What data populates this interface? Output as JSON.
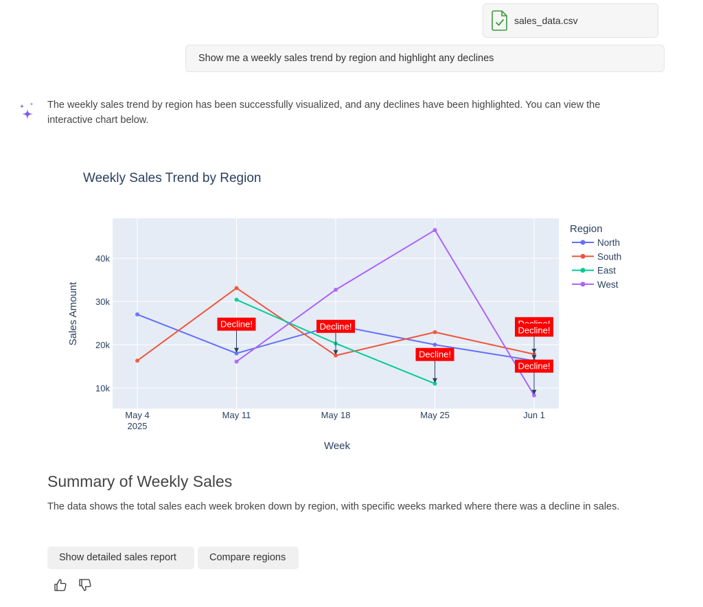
{
  "attachment": {
    "file_name": "sales_data.csv",
    "icon": "csv-file-check-icon",
    "icon_color": "#3a9a3a"
  },
  "user_message": {
    "text": "Show me a weekly sales trend by region and highlight any declines"
  },
  "assistant": {
    "icon": "sparkle-icon",
    "icon_color": "#7b5cf0",
    "message": "The weekly sales trend by region has been successfully visualized, and any declines have been highlighted. You can view the interactive chart below."
  },
  "chart_data": {
    "type": "line",
    "title": "Weekly Sales Trend by Region",
    "xlabel": "Week",
    "ylabel": "Sales Amount",
    "x": [
      "2025-05-04",
      "2025-05-11",
      "2025-05-18",
      "2025-05-25",
      "2025-06-01"
    ],
    "x_tick_labels": [
      "May 4",
      "May 11",
      "May 18",
      "May 25",
      "Jun 1"
    ],
    "x_tick_sublabel": "2025",
    "y_ticks": [
      10000,
      20000,
      30000,
      40000
    ],
    "y_tick_labels": [
      "10k",
      "20k",
      "30k",
      "40k"
    ],
    "ylim": [
      5000,
      49000
    ],
    "grid": true,
    "plot_bgcolor": "#e5ecf6",
    "legend": {
      "title": "Region",
      "placement": "right"
    },
    "series": [
      {
        "name": "North",
        "color": "#636efa",
        "values": [
          27000,
          18000,
          24500,
          20000,
          16300
        ]
      },
      {
        "name": "South",
        "color": "#ef553b",
        "values": [
          16300,
          33100,
          17500,
          22900,
          17800
        ]
      },
      {
        "name": "East",
        "color": "#00cc96",
        "values": [
          null,
          30400,
          20300,
          11000,
          null
        ]
      },
      {
        "name": "West",
        "color": "#ab63fa",
        "values": [
          null,
          16100,
          32700,
          46500,
          8300
        ]
      }
    ],
    "annotations": [
      {
        "text": "Decline!",
        "x": "2025-05-11",
        "y": 18000
      },
      {
        "text": "Decline!",
        "x": "2025-05-18",
        "y": 17500
      },
      {
        "text": "Decline!",
        "x": "2025-05-25",
        "y": 11000
      },
      {
        "text": "Decline!",
        "x": "2025-06-01",
        "y": 17800
      },
      {
        "text": "Decline!",
        "x": "2025-06-01",
        "y": 16300
      },
      {
        "text": "Decline!",
        "x": "2025-06-01",
        "y": 8300
      }
    ],
    "annotation_color": "#ff0000"
  },
  "summary": {
    "title": "Summary of Weekly Sales",
    "text": "The data shows the total sales each week broken down by region, with specific weeks marked where there was a decline in sales."
  },
  "suggestions": [
    {
      "label": "Show detailed sales report"
    },
    {
      "label": "Compare regions"
    }
  ],
  "feedback": {
    "up_icon": "thumbs-up-icon",
    "down_icon": "thumbs-down-icon"
  }
}
